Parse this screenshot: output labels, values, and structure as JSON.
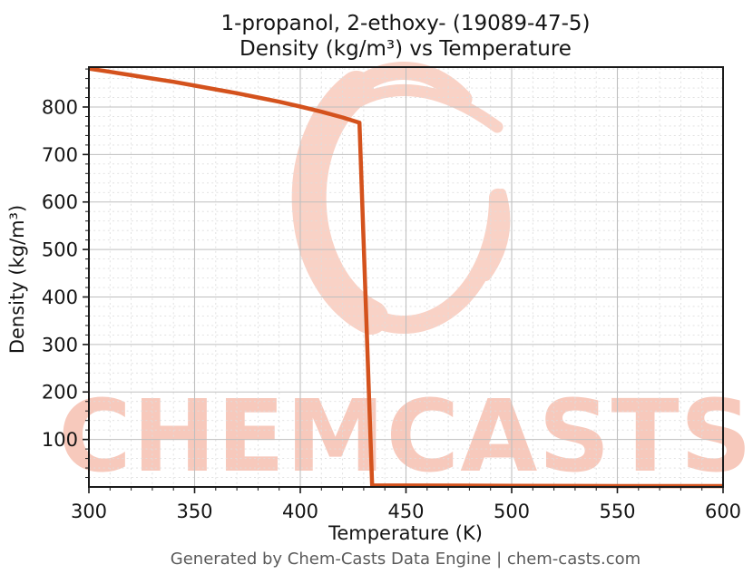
{
  "figure": {
    "title_line1": "1-propanol, 2-ethoxy- (19089-47-5)",
    "title_line2": "Density (kg/m³) vs Temperature",
    "footer": "Generated by Chem-Casts Data Engine | chem-casts.com",
    "watermark_text": "CHEMCASTS",
    "colors": {
      "curve": "#d4521d",
      "watermark_text": "#f7c9bc",
      "watermark_logo": "#f9d2c6",
      "spine": "#1a1a1a",
      "grid_major": "#bfbfbf",
      "grid_minor": "#dedede",
      "footer_text": "#5a5a5a"
    }
  },
  "chart_data": {
    "type": "line",
    "title": "1-propanol, 2-ethoxy- (19089-47-5)",
    "subtitle": "Density (kg/m³) vs Temperature",
    "xlabel": "Temperature (K)",
    "ylabel": "Density (kg/m³)",
    "xlim": [
      300,
      600
    ],
    "ylim": [
      0,
      884
    ],
    "x_major_ticks": [
      300,
      350,
      400,
      450,
      500,
      550,
      600
    ],
    "y_major_ticks": [
      100,
      200,
      300,
      400,
      500,
      600,
      700,
      800
    ],
    "x_minor_step": 10,
    "y_minor_step": 20,
    "grid": "major-solid-minor-dashed",
    "legend": "none",
    "line_color": "#d4521d",
    "line_width": 4.5,
    "series": [
      {
        "name": "Density",
        "points": [
          [
            300,
            881
          ],
          [
            310,
            874
          ],
          [
            320,
            867
          ],
          [
            330,
            860
          ],
          [
            340,
            853
          ],
          [
            350,
            845
          ],
          [
            360,
            837
          ],
          [
            370,
            829
          ],
          [
            380,
            820
          ],
          [
            390,
            811
          ],
          [
            400,
            801
          ],
          [
            410,
            790
          ],
          [
            420,
            778
          ],
          [
            428,
            767
          ],
          [
            434,
            3
          ],
          [
            450,
            3
          ],
          [
            500,
            2.5
          ],
          [
            550,
            2
          ],
          [
            600,
            2
          ]
        ]
      }
    ]
  }
}
